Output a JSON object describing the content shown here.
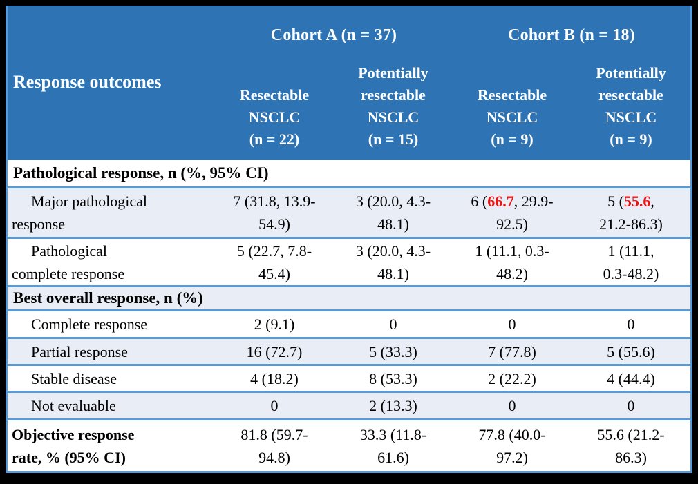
{
  "colors": {
    "header_bg": "#2E74B5",
    "alt_row_bg": "#E9EDF6",
    "border_blue": "#5B9BD5",
    "highlight_red": "#EE1111",
    "frame": "#000000"
  },
  "header": {
    "cohort_a": "Cohort A (n = 37)",
    "cohort_b": "Cohort B (n = 18)",
    "label": "Response outcomes",
    "columns": [
      "Resectable\nNSCLC\n(n = 22)",
      "Potentially\nresectable\nNSCLC\n(n = 15)",
      "Resectable\nNSCLC\n(n = 9)",
      "Potentially\nresectable\nNSCLC\n(n = 9)"
    ]
  },
  "rows": [
    {
      "type": "section",
      "label": "Pathological response, n (%, 95% CI)"
    },
    {
      "type": "data",
      "label": "Major pathological\nresponse",
      "cells": [
        "7 (31.8, 13.9-\n54.9)",
        "3 (20.0, 4.3-\n48.1)",
        {
          "pre": "6 (",
          "red": "66.7",
          "post": ", 29.9-\n92.5)"
        },
        {
          "pre": "5 (",
          "red": "55.6",
          "post": ",\n21.2-86.3)"
        }
      ]
    },
    {
      "type": "data",
      "label": "Pathological\ncomplete response",
      "cells": [
        "5 (22.7, 7.8-\n45.4)",
        "3 (20.0, 4.3-\n48.1)",
        "1 (11.1, 0.3-\n48.2)",
        "1 (11.1,\n0.3-48.2)"
      ]
    },
    {
      "type": "section",
      "label": "Best overall response, n (%)"
    },
    {
      "type": "data",
      "label": "Complete response",
      "cells": [
        "2 (9.1)",
        "0",
        "0",
        "0"
      ]
    },
    {
      "type": "data",
      "label": "Partial response",
      "cells": [
        "16 (72.7)",
        "5 (33.3)",
        "7 (77.8)",
        "5 (55.6)"
      ]
    },
    {
      "type": "data",
      "label": "Stable disease",
      "cells": [
        "4 (18.2)",
        "8 (53.3)",
        "2 (22.2)",
        "4 (44.4)"
      ]
    },
    {
      "type": "data",
      "label": "Not evaluable",
      "cells": [
        "0",
        "2 (13.3)",
        "0",
        "0"
      ]
    },
    {
      "type": "data-bold",
      "label": "Objective response\nrate, % (95% CI)",
      "cells": [
        "81.8 (59.7-\n94.8)",
        "33.3 (11.8-\n61.6)",
        "77.8 (40.0-\n97.2)",
        "55.6 (21.2-\n86.3)"
      ]
    }
  ]
}
